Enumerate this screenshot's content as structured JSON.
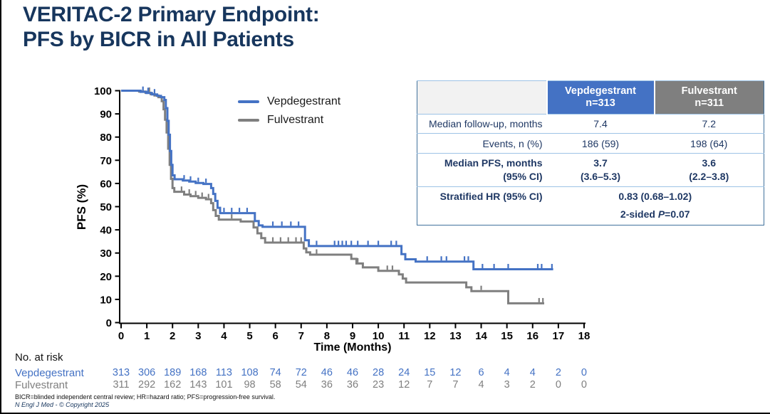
{
  "page": {
    "title_line1": "VERITAC-2 Primary Endpoint:",
    "title_line2": "PFS by BICR in All Patients"
  },
  "legend": {
    "items": [
      {
        "label": "Vepdegestrant",
        "color": "#4472C4"
      },
      {
        "label": "Fulvestrant",
        "color": "#7F7F7F"
      }
    ]
  },
  "stats_table": {
    "columns": [
      {
        "line1": "Vepdegestrant",
        "line2": "n=313",
        "color": "#4472C4"
      },
      {
        "line1": "Fulvestrant",
        "line2": "n=311",
        "color": "#7F7F7F"
      }
    ],
    "rows": {
      "followup": {
        "label": "Median follow-up, months",
        "vep": "7.4",
        "ful": "7.2"
      },
      "events": {
        "label": "Events, n (%)",
        "vep": "186 (59)",
        "ful": "198 (64)"
      },
      "median_pfs": {
        "label_line1": "Median PFS, months",
        "label_line2": "(95% CI)",
        "vep_line1": "3.7",
        "vep_line2": "(3.6–5.3)",
        "ful_line1": "3.6",
        "ful_line2": "(2.2–3.8)"
      },
      "hr": {
        "label": "Stratified HR (95% CI)",
        "value": "0.83 (0.68–1.02)",
        "p_prefix": "2-sided ",
        "p_symbol": "P",
        "p_suffix": "=0.07"
      }
    }
  },
  "chart_data": {
    "type": "line",
    "subtype": "kaplan-meier-step",
    "title": "",
    "xlabel": "Time (Months)",
    "ylabel": "PFS (%)",
    "xlim": [
      0,
      18
    ],
    "ylim": [
      0,
      100
    ],
    "xticks": [
      0,
      1,
      2,
      3,
      4,
      5,
      6,
      7,
      8,
      9,
      10,
      11,
      12,
      13,
      14,
      15,
      16,
      17,
      18
    ],
    "yticks": [
      0,
      10,
      20,
      30,
      40,
      50,
      60,
      70,
      80,
      90,
      100
    ],
    "grid": false,
    "legend_position": "upper-center-left",
    "series": [
      {
        "name": "Fulvestrant",
        "color": "#7F7F7F",
        "steps": [
          [
            0,
            100
          ],
          [
            0.7,
            99.6
          ],
          [
            0.95,
            99.1
          ],
          [
            1.15,
            98.5
          ],
          [
            1.3,
            97.9
          ],
          [
            1.45,
            97.2
          ],
          [
            1.58,
            95.5
          ],
          [
            1.65,
            92
          ],
          [
            1.71,
            87.5
          ],
          [
            1.77,
            82
          ],
          [
            1.83,
            75
          ],
          [
            1.89,
            68
          ],
          [
            1.94,
            62
          ],
          [
            2.0,
            58
          ],
          [
            2.07,
            56.4
          ],
          [
            2.45,
            55.2
          ],
          [
            2.7,
            54.5
          ],
          [
            3.0,
            53.8
          ],
          [
            3.3,
            53.2
          ],
          [
            3.5,
            51.5
          ],
          [
            3.58,
            48.5
          ],
          [
            3.68,
            46
          ],
          [
            3.8,
            44.4
          ],
          [
            4.65,
            43.6
          ],
          [
            5.15,
            41
          ],
          [
            5.3,
            38.5
          ],
          [
            5.45,
            36.4
          ],
          [
            5.6,
            34.5
          ],
          [
            7.1,
            32
          ],
          [
            7.2,
            30.3
          ],
          [
            7.35,
            29.3
          ],
          [
            8.95,
            27.5
          ],
          [
            9.15,
            25.5
          ],
          [
            9.4,
            23.8
          ],
          [
            10.0,
            22.3
          ],
          [
            10.8,
            20.8
          ],
          [
            10.95,
            19
          ],
          [
            11.08,
            17.3
          ],
          [
            13.42,
            15.2
          ],
          [
            13.62,
            13.6
          ],
          [
            15.05,
            8.3
          ]
        ],
        "end_time": 16.45,
        "censor_times": [
          1.1,
          2.35,
          2.65,
          2.9,
          3.15,
          3.4,
          4.3,
          5.9,
          6.2,
          6.5,
          6.8,
          7.0,
          7.6,
          9.2,
          10.35,
          10.55,
          14.0,
          16.25,
          16.4
        ]
      },
      {
        "name": "Vepdegestrant",
        "color": "#4472C4",
        "steps": [
          [
            0,
            100
          ],
          [
            0.76,
            99.5
          ],
          [
            0.98,
            99
          ],
          [
            1.2,
            98.4
          ],
          [
            1.4,
            97.8
          ],
          [
            1.55,
            97.2
          ],
          [
            1.68,
            96
          ],
          [
            1.74,
            92.5
          ],
          [
            1.8,
            87
          ],
          [
            1.85,
            81
          ],
          [
            1.9,
            74
          ],
          [
            1.95,
            68
          ],
          [
            2.0,
            63.5
          ],
          [
            2.08,
            61.8
          ],
          [
            2.4,
            61.3
          ],
          [
            2.65,
            60.8
          ],
          [
            2.9,
            60.2
          ],
          [
            3.2,
            59.8
          ],
          [
            3.5,
            58
          ],
          [
            3.58,
            55.5
          ],
          [
            3.66,
            52.5
          ],
          [
            3.75,
            49.5
          ],
          [
            3.85,
            47.2
          ],
          [
            5.2,
            43.8
          ],
          [
            5.35,
            41.9
          ],
          [
            5.5,
            41.3
          ],
          [
            7.15,
            35.5
          ],
          [
            7.3,
            33.0
          ],
          [
            10.9,
            29.5
          ],
          [
            11.05,
            27.3
          ],
          [
            11.45,
            26.3
          ],
          [
            13.7,
            23.0
          ]
        ],
        "end_time": 16.8,
        "censor_times": [
          0.85,
          1.05,
          1.3,
          2.45,
          2.7,
          3.0,
          3.3,
          4.0,
          4.3,
          4.6,
          4.9,
          5.9,
          6.25,
          6.6,
          6.9,
          7.6,
          8.3,
          8.45,
          8.6,
          8.75,
          8.95,
          9.2,
          9.6,
          10.0,
          10.5,
          10.7,
          11.9,
          12.45,
          12.65,
          13.35,
          13.5,
          14.05,
          14.5,
          15.05,
          16.2,
          16.35,
          16.75
        ]
      }
    ]
  },
  "risk_table": {
    "heading": "No. at risk",
    "rows": [
      {
        "label": "Vepdegestrant",
        "color": "#4472C4",
        "values": [
          313,
          306,
          189,
          168,
          113,
          108,
          74,
          72,
          46,
          46,
          28,
          24,
          15,
          12,
          6,
          4,
          4,
          2,
          0
        ]
      },
      {
        "label": "Fulvestrant",
        "color": "#7F7F7F",
        "values": [
          311,
          292,
          162,
          143,
          101,
          98,
          58,
          54,
          36,
          36,
          23,
          12,
          7,
          7,
          4,
          3,
          2,
          0,
          0
        ]
      }
    ]
  },
  "footnotes": {
    "line1": "BICR=blinded independent central review; HR=hazard ratio; PFS=progression-free survival.",
    "line2": "N Engl J Med - © Copyright 2025"
  }
}
